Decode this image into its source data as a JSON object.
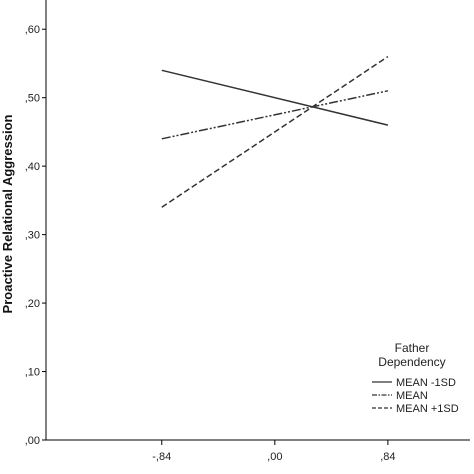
{
  "chart_data": {
    "type": "line",
    "ylabel": "Proactive Relational Aggression",
    "xlabel": "",
    "x_tick_labels": [
      ",84",
      ",00",
      ",84"
    ],
    "x_tick_values": [
      -0.84,
      0.0,
      0.84
    ],
    "x_tick_display": [
      "-,84",
      ",00",
      ",84"
    ],
    "y_tick_labels": [
      ",00",
      ",10",
      ",20",
      ",30",
      ",40",
      ",50",
      ",60"
    ],
    "y_tick_values": [
      0.0,
      0.1,
      0.2,
      0.3,
      0.4,
      0.5,
      0.6
    ],
    "xlim": [
      -1.7,
      1.45
    ],
    "ylim": [
      0.0,
      0.65
    ],
    "grid": false,
    "legend": {
      "title_line1": "Father",
      "title_line2": "Dependency",
      "placement": "bottom-right"
    },
    "series": [
      {
        "name": "MEAN -1SD",
        "dash": "solid",
        "color": "#333333",
        "x": [
          -0.84,
          0.84
        ],
        "y": [
          0.54,
          0.46
        ]
      },
      {
        "name": "MEAN",
        "dash": "dash-dot-dot",
        "color": "#333333",
        "x": [
          -0.84,
          0.84
        ],
        "y": [
          0.44,
          0.51
        ]
      },
      {
        "name": "MEAN +1SD",
        "dash": "dashed",
        "color": "#333333",
        "x": [
          -0.84,
          0.84
        ],
        "y": [
          0.34,
          0.56
        ]
      }
    ]
  }
}
